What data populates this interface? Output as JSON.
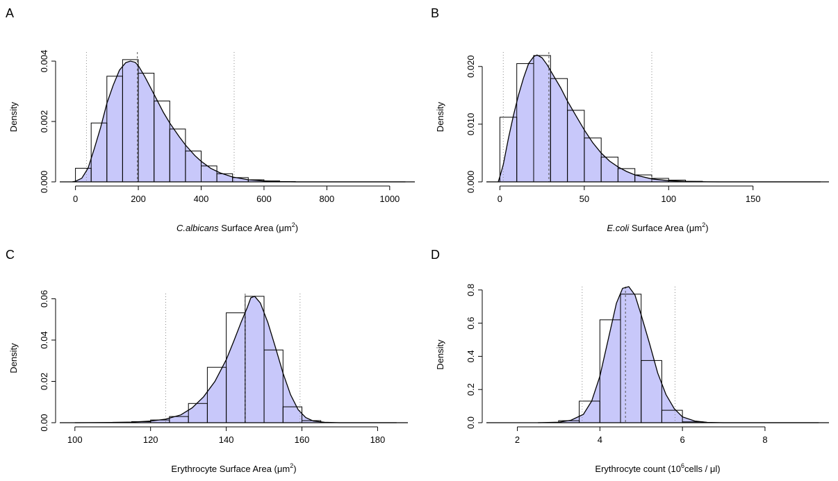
{
  "chart_data": [
    {
      "type": "histogram",
      "panel_label": "A",
      "xlabel_italic": "C.albicans",
      "xlabel_rest": " Surface Area (μm",
      "xlabel_sup": "2",
      "xlabel_end": ")",
      "ylabel": "Density",
      "xlim": [
        -50,
        1080
      ],
      "ylim": [
        0,
        0.0043
      ],
      "x_ticks": [
        0,
        200,
        400,
        600,
        800,
        1000
      ],
      "x_tick_labels": [
        "0",
        "200",
        "400",
        "600",
        "800",
        "1000"
      ],
      "y_ticks": [
        0,
        0.002,
        0.004
      ],
      "y_tick_labels": [
        "0.000",
        "0.002",
        "0.004"
      ],
      "bins": [
        {
          "x0": 0,
          "x1": 50,
          "density": 0.00045
        },
        {
          "x0": 50,
          "x1": 100,
          "density": 0.00195
        },
        {
          "x0": 100,
          "x1": 150,
          "density": 0.0035
        },
        {
          "x0": 150,
          "x1": 200,
          "density": 0.00405
        },
        {
          "x0": 200,
          "x1": 250,
          "density": 0.0036
        },
        {
          "x0": 250,
          "x1": 300,
          "density": 0.00268
        },
        {
          "x0": 300,
          "x1": 350,
          "density": 0.00175
        },
        {
          "x0": 350,
          "x1": 400,
          "density": 0.00102
        },
        {
          "x0": 400,
          "x1": 450,
          "density": 0.00053
        },
        {
          "x0": 450,
          "x1": 500,
          "density": 0.00027
        },
        {
          "x0": 500,
          "x1": 550,
          "density": 0.00014
        },
        {
          "x0": 550,
          "x1": 600,
          "density": 7e-05
        },
        {
          "x0": 600,
          "x1": 650,
          "density": 3e-05
        },
        {
          "x0": 650,
          "x1": 700,
          "density": 1e-05
        },
        {
          "x0": 700,
          "x1": 1050,
          "density": 0.0
        }
      ],
      "curve": [
        [
          -10,
          0.0
        ],
        [
          0,
          2e-05
        ],
        [
          20,
          0.00012
        ],
        [
          40,
          0.00045
        ],
        [
          60,
          0.0011
        ],
        [
          80,
          0.0018
        ],
        [
          100,
          0.0026
        ],
        [
          120,
          0.0032
        ],
        [
          140,
          0.0037
        ],
        [
          160,
          0.00395
        ],
        [
          175,
          0.004
        ],
        [
          190,
          0.00396
        ],
        [
          200,
          0.00385
        ],
        [
          220,
          0.0035
        ],
        [
          250,
          0.0029
        ],
        [
          280,
          0.0023
        ],
        [
          300,
          0.00195
        ],
        [
          330,
          0.0015
        ],
        [
          350,
          0.00122
        ],
        [
          380,
          0.00087
        ],
        [
          400,
          0.00068
        ],
        [
          430,
          0.00045
        ],
        [
          460,
          0.0003
        ],
        [
          500,
          0.00016
        ],
        [
          550,
          7e-05
        ],
        [
          600,
          3e-05
        ],
        [
          650,
          1e-05
        ],
        [
          700,
          0.0
        ],
        [
          1050,
          0.0
        ]
      ],
      "vlines_dotted": [
        35,
        505
      ],
      "vline_dashed": 197,
      "fill_color": "#c8c8fa",
      "curve_color": "#000000"
    },
    {
      "type": "histogram",
      "panel_label": "B",
      "xlabel_italic": "E.coli",
      "xlabel_rest": " Surface Area (μm",
      "xlabel_sup": "2",
      "xlabel_end": ")",
      "ylabel": "Density",
      "xlim": [
        -8,
        195
      ],
      "ylim": [
        0,
        0.0225
      ],
      "x_ticks": [
        0,
        50,
        100,
        150
      ],
      "x_tick_labels": [
        "0",
        "50",
        "100",
        "150"
      ],
      "y_ticks": [
        0,
        0.01,
        0.02
      ],
      "y_tick_labels": [
        "0.000",
        "0.010",
        "0.020"
      ],
      "bins": [
        {
          "x0": 0,
          "x1": 10,
          "density": 0.0112
        },
        {
          "x0": 10,
          "x1": 20,
          "density": 0.0205
        },
        {
          "x0": 20,
          "x1": 30,
          "density": 0.0219
        },
        {
          "x0": 30,
          "x1": 40,
          "density": 0.0179
        },
        {
          "x0": 40,
          "x1": 50,
          "density": 0.0124
        },
        {
          "x0": 50,
          "x1": 60,
          "density": 0.0076
        },
        {
          "x0": 60,
          "x1": 70,
          "density": 0.0043
        },
        {
          "x0": 70,
          "x1": 80,
          "density": 0.0023
        },
        {
          "x0": 80,
          "x1": 90,
          "density": 0.0012
        },
        {
          "x0": 90,
          "x1": 100,
          "density": 0.0006
        },
        {
          "x0": 100,
          "x1": 110,
          "density": 0.0003
        },
        {
          "x0": 110,
          "x1": 120,
          "density": 0.0001
        },
        {
          "x0": 120,
          "x1": 190,
          "density": 0.0
        }
      ],
      "curve": [
        [
          -1,
          0.0
        ],
        [
          0,
          0.0009
        ],
        [
          2,
          0.003
        ],
        [
          5,
          0.0075
        ],
        [
          8,
          0.0115
        ],
        [
          11,
          0.015
        ],
        [
          14,
          0.018
        ],
        [
          17,
          0.0205
        ],
        [
          20,
          0.0217
        ],
        [
          22,
          0.022
        ],
        [
          25,
          0.0215
        ],
        [
          28,
          0.0203
        ],
        [
          32,
          0.0183
        ],
        [
          36,
          0.0163
        ],
        [
          40,
          0.014
        ],
        [
          45,
          0.0115
        ],
        [
          50,
          0.009
        ],
        [
          55,
          0.0068
        ],
        [
          60,
          0.005
        ],
        [
          65,
          0.0036
        ],
        [
          70,
          0.0026
        ],
        [
          75,
          0.0018
        ],
        [
          80,
          0.0012
        ],
        [
          90,
          0.0005
        ],
        [
          100,
          0.0002
        ],
        [
          110,
          7e-05
        ],
        [
          120,
          2e-05
        ],
        [
          130,
          0.0
        ],
        [
          190,
          0.0
        ]
      ],
      "vlines_dotted": [
        2,
        90
      ],
      "vline_dashed": 29,
      "fill_color": "#c8c8fa",
      "curve_color": "#000000"
    },
    {
      "type": "histogram",
      "panel_label": "C",
      "xlabel_italic": "",
      "xlabel_rest": "Erythrocyte Surface Area (μm",
      "xlabel_sup": "2",
      "xlabel_end": ")",
      "ylabel": "Density",
      "xlim": [
        96,
        188
      ],
      "ylim": [
        0,
        0.0625
      ],
      "x_ticks": [
        100,
        120,
        140,
        160,
        180
      ],
      "x_tick_labels": [
        "100",
        "120",
        "140",
        "160",
        "180"
      ],
      "y_ticks": [
        0,
        0.02,
        0.04,
        0.06
      ],
      "y_tick_labels": [
        "0.00",
        "0.02",
        "0.04",
        "0.06"
      ],
      "bins": [
        {
          "x0": 110,
          "x1": 115,
          "density": 0.0002
        },
        {
          "x0": 115,
          "x1": 120,
          "density": 0.0005
        },
        {
          "x0": 120,
          "x1": 125,
          "density": 0.0013
        },
        {
          "x0": 125,
          "x1": 130,
          "density": 0.003
        },
        {
          "x0": 130,
          "x1": 135,
          "density": 0.0093
        },
        {
          "x0": 135,
          "x1": 140,
          "density": 0.0268
        },
        {
          "x0": 140,
          "x1": 145,
          "density": 0.0532
        },
        {
          "x0": 145,
          "x1": 150,
          "density": 0.0612
        },
        {
          "x0": 150,
          "x1": 155,
          "density": 0.0352
        },
        {
          "x0": 155,
          "x1": 160,
          "density": 0.0077
        },
        {
          "x0": 160,
          "x1": 165,
          "density": 0.001
        }
      ],
      "curve": [
        [
          100,
          0.0
        ],
        [
          110,
          0.0001
        ],
        [
          115,
          0.0003
        ],
        [
          120,
          0.0008
        ],
        [
          124,
          0.0017
        ],
        [
          128,
          0.0038
        ],
        [
          131,
          0.0072
        ],
        [
          134,
          0.0125
        ],
        [
          137,
          0.02
        ],
        [
          140,
          0.0305
        ],
        [
          142,
          0.0395
        ],
        [
          144,
          0.049
        ],
        [
          145.5,
          0.0555
        ],
        [
          146.5,
          0.0605
        ],
        [
          147.5,
          0.0612
        ],
        [
          149,
          0.058
        ],
        [
          151,
          0.0485
        ],
        [
          153,
          0.0365
        ],
        [
          155,
          0.024
        ],
        [
          157,
          0.0135
        ],
        [
          159,
          0.0063
        ],
        [
          161,
          0.0025
        ],
        [
          163,
          0.0008
        ],
        [
          166,
          0.0002
        ],
        [
          170,
          0.0
        ],
        [
          185,
          0.0
        ]
      ],
      "vlines_dotted": [
        124,
        159.5
      ],
      "vline_dashed": 145,
      "fill_color": "#c8c8fa",
      "curve_color": "#000000"
    },
    {
      "type": "histogram",
      "panel_label": "D",
      "xlabel_italic": "",
      "xlabel_rest": "Erythrocyte count (10",
      "xlabel_sup": "6",
      "xlabel_end": "cells / μl)",
      "ylabel": "Density",
      "xlim": [
        1.25,
        9.55
      ],
      "ylim": [
        0,
        0.82
      ],
      "x_ticks": [
        2,
        4,
        6,
        8
      ],
      "x_tick_labels": [
        "2",
        "4",
        "6",
        "8"
      ],
      "y_ticks": [
        0,
        0.2,
        0.4,
        0.6,
        0.8
      ],
      "y_tick_labels": [
        "0.0",
        "0.2",
        "0.4",
        "0.6",
        "0.8"
      ],
      "bins": [
        {
          "x0": 3.0,
          "x1": 3.5,
          "density": 0.012
        },
        {
          "x0": 3.5,
          "x1": 4.0,
          "density": 0.13
        },
        {
          "x0": 4.0,
          "x1": 4.5,
          "density": 0.62
        },
        {
          "x0": 4.5,
          "x1": 5.0,
          "density": 0.775
        },
        {
          "x0": 5.0,
          "x1": 5.5,
          "density": 0.375
        },
        {
          "x0": 5.5,
          "x1": 6.0,
          "density": 0.075
        },
        {
          "x0": 6.0,
          "x1": 6.5,
          "density": 0.005
        }
      ],
      "curve": [
        [
          2.5,
          0.0
        ],
        [
          3.0,
          0.003
        ],
        [
          3.3,
          0.015
        ],
        [
          3.6,
          0.05
        ],
        [
          3.8,
          0.13
        ],
        [
          4.0,
          0.28
        ],
        [
          4.2,
          0.5
        ],
        [
          4.4,
          0.72
        ],
        [
          4.55,
          0.81
        ],
        [
          4.7,
          0.82
        ],
        [
          4.85,
          0.77
        ],
        [
          5.0,
          0.65
        ],
        [
          5.2,
          0.48
        ],
        [
          5.4,
          0.3
        ],
        [
          5.6,
          0.17
        ],
        [
          5.8,
          0.085
        ],
        [
          6.0,
          0.035
        ],
        [
          6.3,
          0.01
        ],
        [
          6.6,
          0.002
        ],
        [
          7.0,
          0.0
        ],
        [
          9.3,
          0.0
        ]
      ],
      "vlines_dotted": [
        3.57,
        5.82
      ],
      "vline_dashed": 4.62,
      "fill_color": "#c8c8fa",
      "curve_color": "#000000"
    }
  ]
}
